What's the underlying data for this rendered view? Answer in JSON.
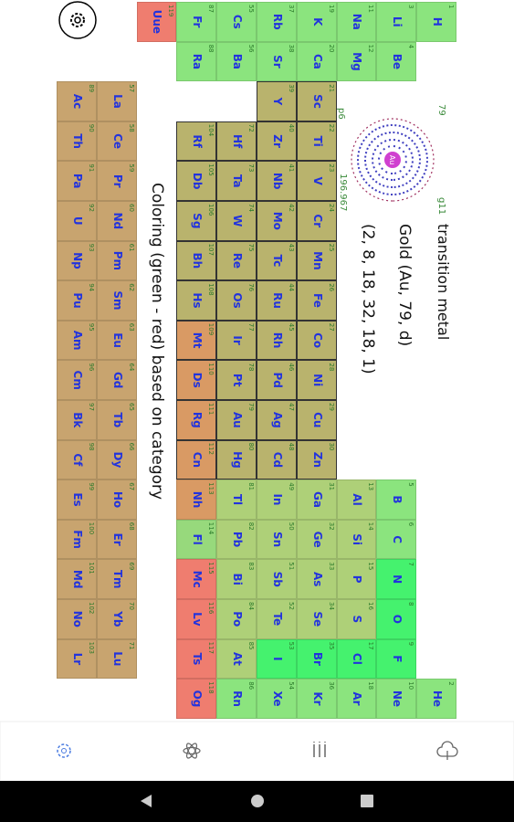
{
  "info": {
    "atomic_number": 79,
    "block": "p6",
    "atom_symbol": "Au",
    "mass": 196.967,
    "group": "g11",
    "category": "transition metal",
    "title": "Gold (Au, 79, d)",
    "shells": "(2, 8, 18, 32, 18, 1)"
  },
  "note": "Coloring (green - red) based on category",
  "table": {
    "rows": [
      [
        {
          "number": 1,
          "symbol": "H",
          "color": "#8be47e"
        },
        null,
        null,
        null,
        null,
        null,
        null,
        null,
        null,
        null,
        null,
        null,
        null,
        null,
        null,
        null,
        null,
        {
          "number": 2,
          "symbol": "He",
          "color": "#8be47e"
        }
      ],
      [
        {
          "number": 3,
          "symbol": "Li",
          "color": "#8be47e"
        },
        {
          "number": 4,
          "symbol": "Be",
          "color": "#8be47e"
        },
        null,
        null,
        null,
        null,
        null,
        null,
        null,
        null,
        null,
        null,
        {
          "number": 5,
          "symbol": "B",
          "color": "#8be47e"
        },
        {
          "number": 6,
          "symbol": "C",
          "color": "#8be47e"
        },
        {
          "number": 7,
          "symbol": "N",
          "color": "#45f26e"
        },
        {
          "number": 8,
          "symbol": "O",
          "color": "#45f26e"
        },
        {
          "number": 9,
          "symbol": "F",
          "color": "#45f26e"
        },
        {
          "number": 10,
          "symbol": "Ne",
          "color": "#8be47e"
        }
      ],
      [
        {
          "number": 11,
          "symbol": "Na",
          "color": "#8be47e"
        },
        {
          "number": 12,
          "symbol": "Mg",
          "color": "#8be47e"
        },
        null,
        null,
        null,
        null,
        null,
        null,
        null,
        null,
        null,
        null,
        {
          "number": 13,
          "symbol": "Al",
          "color": "#aed078"
        },
        {
          "number": 14,
          "symbol": "Si",
          "color": "#aed078"
        },
        {
          "number": 15,
          "symbol": "P",
          "color": "#aed078"
        },
        {
          "number": 16,
          "symbol": "S",
          "color": "#aed078"
        },
        {
          "number": 17,
          "symbol": "Cl",
          "color": "#45f26e"
        },
        {
          "number": 18,
          "symbol": "Ar",
          "color": "#8be47e"
        }
      ],
      [
        {
          "number": 19,
          "symbol": "K",
          "color": "#8be47e"
        },
        {
          "number": 20,
          "symbol": "Ca",
          "color": "#8be47e"
        },
        {
          "number": 21,
          "symbol": "Sc",
          "color": "#b9b36d"
        },
        {
          "number": 22,
          "symbol": "Ti",
          "color": "#b9b36d"
        },
        {
          "number": 23,
          "symbol": "V",
          "color": "#b9b36d"
        },
        {
          "number": 24,
          "symbol": "Cr",
          "color": "#b9b36d"
        },
        {
          "number": 25,
          "symbol": "Mn",
          "color": "#b9b36d"
        },
        {
          "number": 26,
          "symbol": "Fe",
          "color": "#b9b36d"
        },
        {
          "number": 27,
          "symbol": "Co",
          "color": "#b9b36d"
        },
        {
          "number": 28,
          "symbol": "Ni",
          "color": "#b9b36d"
        },
        {
          "number": 29,
          "symbol": "Cu",
          "color": "#b9b36d"
        },
        {
          "number": 30,
          "symbol": "Zn",
          "color": "#b9b36d"
        },
        {
          "number": 31,
          "symbol": "Ga",
          "color": "#aed078"
        },
        {
          "number": 32,
          "symbol": "Ge",
          "color": "#aed078"
        },
        {
          "number": 33,
          "symbol": "As",
          "color": "#aed078"
        },
        {
          "number": 34,
          "symbol": "Se",
          "color": "#aed078"
        },
        {
          "number": 35,
          "symbol": "Br",
          "color": "#45f26e"
        },
        {
          "number": 36,
          "symbol": "Kr",
          "color": "#8be47e"
        }
      ],
      [
        {
          "number": 37,
          "symbol": "Rb",
          "color": "#8be47e"
        },
        {
          "number": 38,
          "symbol": "Sr",
          "color": "#8be47e"
        },
        {
          "number": 39,
          "symbol": "Y",
          "color": "#b9b36d"
        },
        {
          "number": 40,
          "symbol": "Zr",
          "color": "#b9b36d"
        },
        {
          "number": 41,
          "symbol": "Nb",
          "color": "#b9b36d"
        },
        {
          "number": 42,
          "symbol": "Mo",
          "color": "#b9b36d"
        },
        {
          "number": 43,
          "symbol": "Tc",
          "color": "#b9b36d"
        },
        {
          "number": 44,
          "symbol": "Ru",
          "color": "#b9b36d"
        },
        {
          "number": 45,
          "symbol": "Rh",
          "color": "#b9b36d"
        },
        {
          "number": 46,
          "symbol": "Pd",
          "color": "#b9b36d"
        },
        {
          "number": 47,
          "symbol": "Ag",
          "color": "#b9b36d"
        },
        {
          "number": 48,
          "symbol": "Cd",
          "color": "#b9b36d"
        },
        {
          "number": 49,
          "symbol": "In",
          "color": "#aed078"
        },
        {
          "number": 50,
          "symbol": "Sn",
          "color": "#aed078"
        },
        {
          "number": 51,
          "symbol": "Sb",
          "color": "#aed078"
        },
        {
          "number": 52,
          "symbol": "Te",
          "color": "#aed078"
        },
        {
          "number": 53,
          "symbol": "I",
          "color": "#45f26e"
        },
        {
          "number": 54,
          "symbol": "Xe",
          "color": "#8be47e"
        }
      ],
      [
        {
          "number": 55,
          "symbol": "Cs",
          "color": "#8be47e"
        },
        {
          "number": 56,
          "symbol": "Ba",
          "color": "#8be47e"
        },
        null,
        {
          "number": 72,
          "symbol": "Hf",
          "color": "#b9b36d"
        },
        {
          "number": 73,
          "symbol": "Ta",
          "color": "#b9b36d"
        },
        {
          "number": 74,
          "symbol": "W",
          "color": "#b9b36d"
        },
        {
          "number": 75,
          "symbol": "Re",
          "color": "#b9b36d"
        },
        {
          "number": 76,
          "symbol": "Os",
          "color": "#b9b36d"
        },
        {
          "number": 77,
          "symbol": "Ir",
          "color": "#b9b36d"
        },
        {
          "number": 78,
          "symbol": "Pt",
          "color": "#b9b36d"
        },
        {
          "number": 79,
          "symbol": "Au",
          "color": "#b9b36d"
        },
        {
          "number": 80,
          "symbol": "Hg",
          "color": "#b9b36d"
        },
        {
          "number": 81,
          "symbol": "Tl",
          "color": "#aed078"
        },
        {
          "number": 82,
          "symbol": "Pb",
          "color": "#aed078"
        },
        {
          "number": 83,
          "symbol": "Bi",
          "color": "#aed078"
        },
        {
          "number": 84,
          "symbol": "Po",
          "color": "#aed078"
        },
        {
          "number": 85,
          "symbol": "At",
          "color": "#aed078"
        },
        {
          "number": 86,
          "symbol": "Rn",
          "color": "#8be47e"
        }
      ],
      [
        {
          "number": 87,
          "symbol": "Fr",
          "color": "#8be47e"
        },
        {
          "number": 88,
          "symbol": "Ra",
          "color": "#8be47e"
        },
        null,
        {
          "number": 104,
          "symbol": "Rf",
          "color": "#b9b36d"
        },
        {
          "number": 105,
          "symbol": "Db",
          "color": "#b9b36d"
        },
        {
          "number": 106,
          "symbol": "Sg",
          "color": "#b9b36d"
        },
        {
          "number": 107,
          "symbol": "Bh",
          "color": "#b9b36d"
        },
        {
          "number": 108,
          "symbol": "Hs",
          "color": "#b9b36d"
        },
        {
          "number": 109,
          "symbol": "Mt",
          "color": "#d99a64"
        },
        {
          "number": 110,
          "symbol": "Ds",
          "color": "#d99a64"
        },
        {
          "number": 111,
          "symbol": "Rg",
          "color": "#d99a64"
        },
        {
          "number": 112,
          "symbol": "Cn",
          "color": "#d99a64"
        },
        {
          "number": 113,
          "symbol": "Nh",
          "color": "#d99a64"
        },
        {
          "number": 114,
          "symbol": "Fl",
          "color": "#97d97c"
        },
        {
          "number": 115,
          "symbol": "Mc",
          "color": "#ef7d6f"
        },
        {
          "number": 116,
          "symbol": "Lv",
          "color": "#ef7d6f"
        },
        {
          "number": 117,
          "symbol": "Ts",
          "color": "#ef7d6f"
        },
        {
          "number": 118,
          "symbol": "Og",
          "color": "#ef7d6f"
        }
      ],
      [
        {
          "number": 119,
          "symbol": "Uue",
          "color": "#ef7d6f"
        },
        null,
        null,
        null,
        null,
        null,
        null,
        null,
        null,
        null,
        null,
        null,
        null,
        null,
        null,
        null,
        null,
        null
      ]
    ],
    "f_rows": [
      [
        {
          "number": 57,
          "symbol": "La",
          "color": "#c8a46f"
        },
        {
          "number": 58,
          "symbol": "Ce",
          "color": "#c8a46f"
        },
        {
          "number": 59,
          "symbol": "Pr",
          "color": "#c8a46f"
        },
        {
          "number": 60,
          "symbol": "Nd",
          "color": "#c8a46f"
        },
        {
          "number": 61,
          "symbol": "Pm",
          "color": "#c8a46f"
        },
        {
          "number": 62,
          "symbol": "Sm",
          "color": "#c8a46f"
        },
        {
          "number": 63,
          "symbol": "Eu",
          "color": "#c8a46f"
        },
        {
          "number": 64,
          "symbol": "Gd",
          "color": "#c8a46f"
        },
        {
          "number": 65,
          "symbol": "Tb",
          "color": "#c8a46f"
        },
        {
          "number": 66,
          "symbol": "Dy",
          "color": "#c8a46f"
        },
        {
          "number": 67,
          "symbol": "Ho",
          "color": "#c8a46f"
        },
        {
          "number": 68,
          "symbol": "Er",
          "color": "#c8a46f"
        },
        {
          "number": 69,
          "symbol": "Tm",
          "color": "#c8a46f"
        },
        {
          "number": 70,
          "symbol": "Yb",
          "color": "#c8a46f"
        },
        {
          "number": 71,
          "symbol": "Lu",
          "color": "#c8a46f"
        }
      ],
      [
        {
          "number": 89,
          "symbol": "Ac",
          "color": "#c8a46f"
        },
        {
          "number": 90,
          "symbol": "Th",
          "color": "#c8a46f"
        },
        {
          "number": 91,
          "symbol": "Pa",
          "color": "#c8a46f"
        },
        {
          "number": 92,
          "symbol": "U",
          "color": "#c8a46f"
        },
        {
          "number": 93,
          "symbol": "Np",
          "color": "#c8a46f"
        },
        {
          "number": 94,
          "symbol": "Pu",
          "color": "#c8a46f"
        },
        {
          "number": 95,
          "symbol": "Am",
          "color": "#c8a46f"
        },
        {
          "number": 96,
          "symbol": "Cm",
          "color": "#c8a46f"
        },
        {
          "number": 97,
          "symbol": "Bk",
          "color": "#c8a46f"
        },
        {
          "number": 98,
          "symbol": "Cf",
          "color": "#c8a46f"
        },
        {
          "number": 99,
          "symbol": "Es",
          "color": "#c8a46f"
        },
        {
          "number": 100,
          "symbol": "Fm",
          "color": "#c8a46f"
        },
        {
          "number": 101,
          "symbol": "Md",
          "color": "#c8a46f"
        },
        {
          "number": 102,
          "symbol": "No",
          "color": "#c8a46f"
        },
        {
          "number": 103,
          "symbol": "Lr",
          "color": "#c8a46f"
        }
      ]
    ]
  }
}
